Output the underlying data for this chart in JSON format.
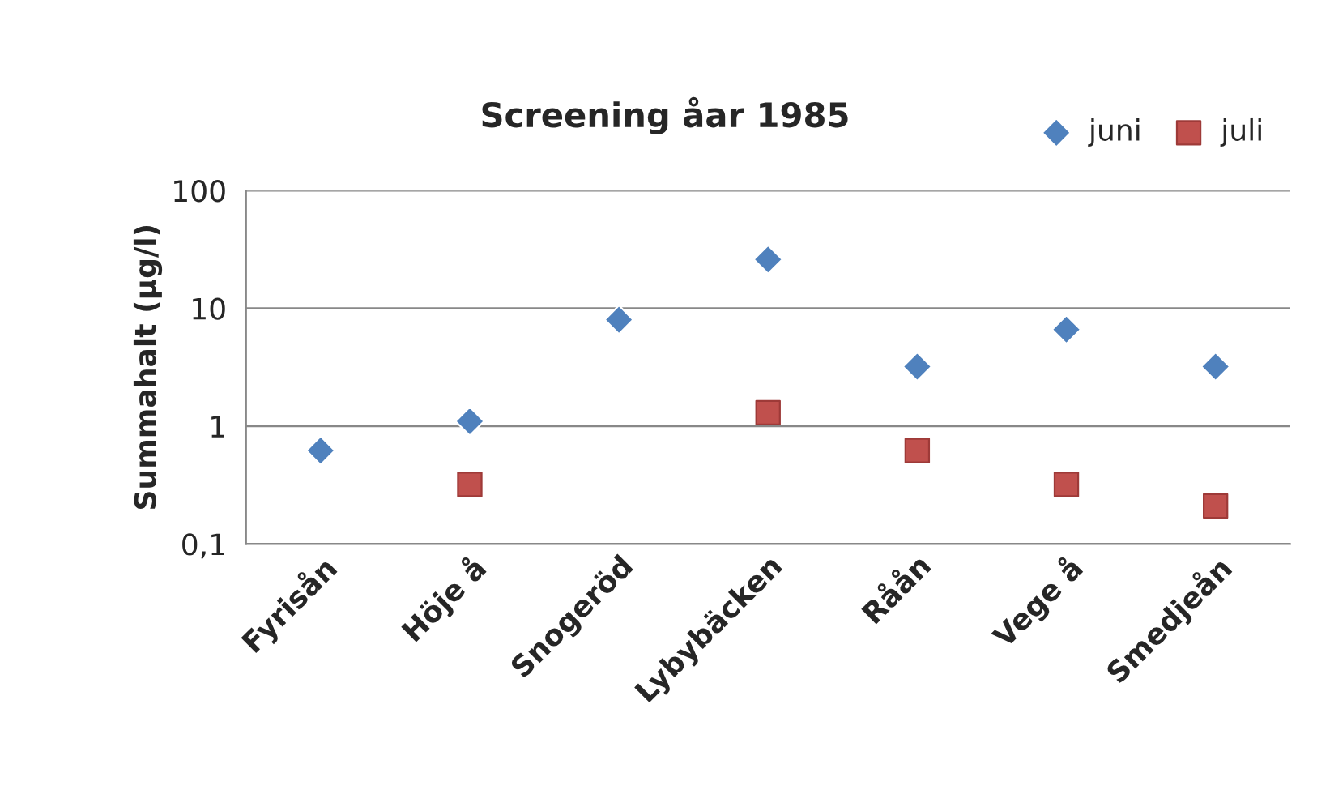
{
  "chart_data": {
    "type": "scatter",
    "title": "Screening åar 1985",
    "ylabel": "Summahalt (µg/l)",
    "categories": [
      "Fyrisån",
      "Höje å",
      "Snogeröd",
      "Lybybäcken",
      "Råån",
      "Vege å",
      "Smedjeån"
    ],
    "series": [
      {
        "name": "juni",
        "color": "#4f81bd",
        "marker": "diamond",
        "values": [
          0.62,
          1.1,
          8,
          26,
          3.2,
          6.6,
          3.2
        ]
      },
      {
        "name": "juli",
        "color": "#c0504d",
        "marker": "square",
        "values": [
          null,
          0.32,
          null,
          1.3,
          0.62,
          0.32,
          0.21
        ]
      }
    ],
    "log": "y",
    "ylim": [
      0.1,
      100
    ],
    "yticks": [
      {
        "value": 0.1,
        "label": "0,1"
      },
      1,
      10,
      100
    ],
    "grid": "y",
    "legend": "top right"
  }
}
